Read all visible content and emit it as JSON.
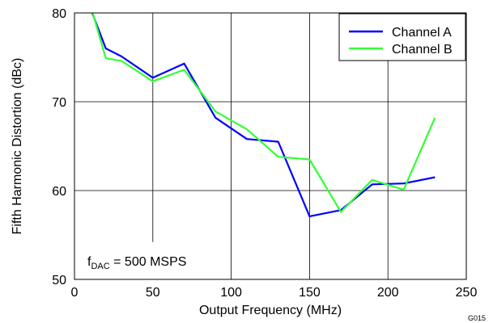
{
  "chart_data": {
    "type": "line",
    "title": "",
    "xlabel": "Output Frequency (MHz)",
    "ylabel": "Fifth Harmonic Distortion (dBc)",
    "xlim": [
      0,
      250
    ],
    "ylim": [
      50,
      80
    ],
    "xticks": [
      "0",
      "50",
      "100",
      "150",
      "200",
      "250"
    ],
    "yticks": [
      "50",
      "60",
      "70",
      "80"
    ],
    "grid": true,
    "legend_position": "top-right",
    "series": [
      {
        "name": "Channel A",
        "color": "#0000ff",
        "x": [
          10,
          20,
          30,
          50,
          70,
          90,
          110,
          130,
          150,
          170,
          190,
          210,
          230
        ],
        "y": [
          80.6,
          76.0,
          75.1,
          72.7,
          74.3,
          68.2,
          65.8,
          65.5,
          57.1,
          57.8,
          60.7,
          60.8,
          61.5
        ]
      },
      {
        "name": "Channel B",
        "color": "#33ff33",
        "x": [
          10,
          20,
          30,
          50,
          70,
          90,
          110,
          130,
          150,
          170,
          190,
          210,
          230
        ],
        "y": [
          81.0,
          74.9,
          74.6,
          72.3,
          73.6,
          68.9,
          66.9,
          63.8,
          63.5,
          57.6,
          61.2,
          60.1,
          68.2
        ]
      }
    ],
    "annotation": {
      "prefix": "f",
      "subscript": "DAC",
      "suffix": " = 500 MSPS"
    },
    "figure_id": "G015"
  }
}
